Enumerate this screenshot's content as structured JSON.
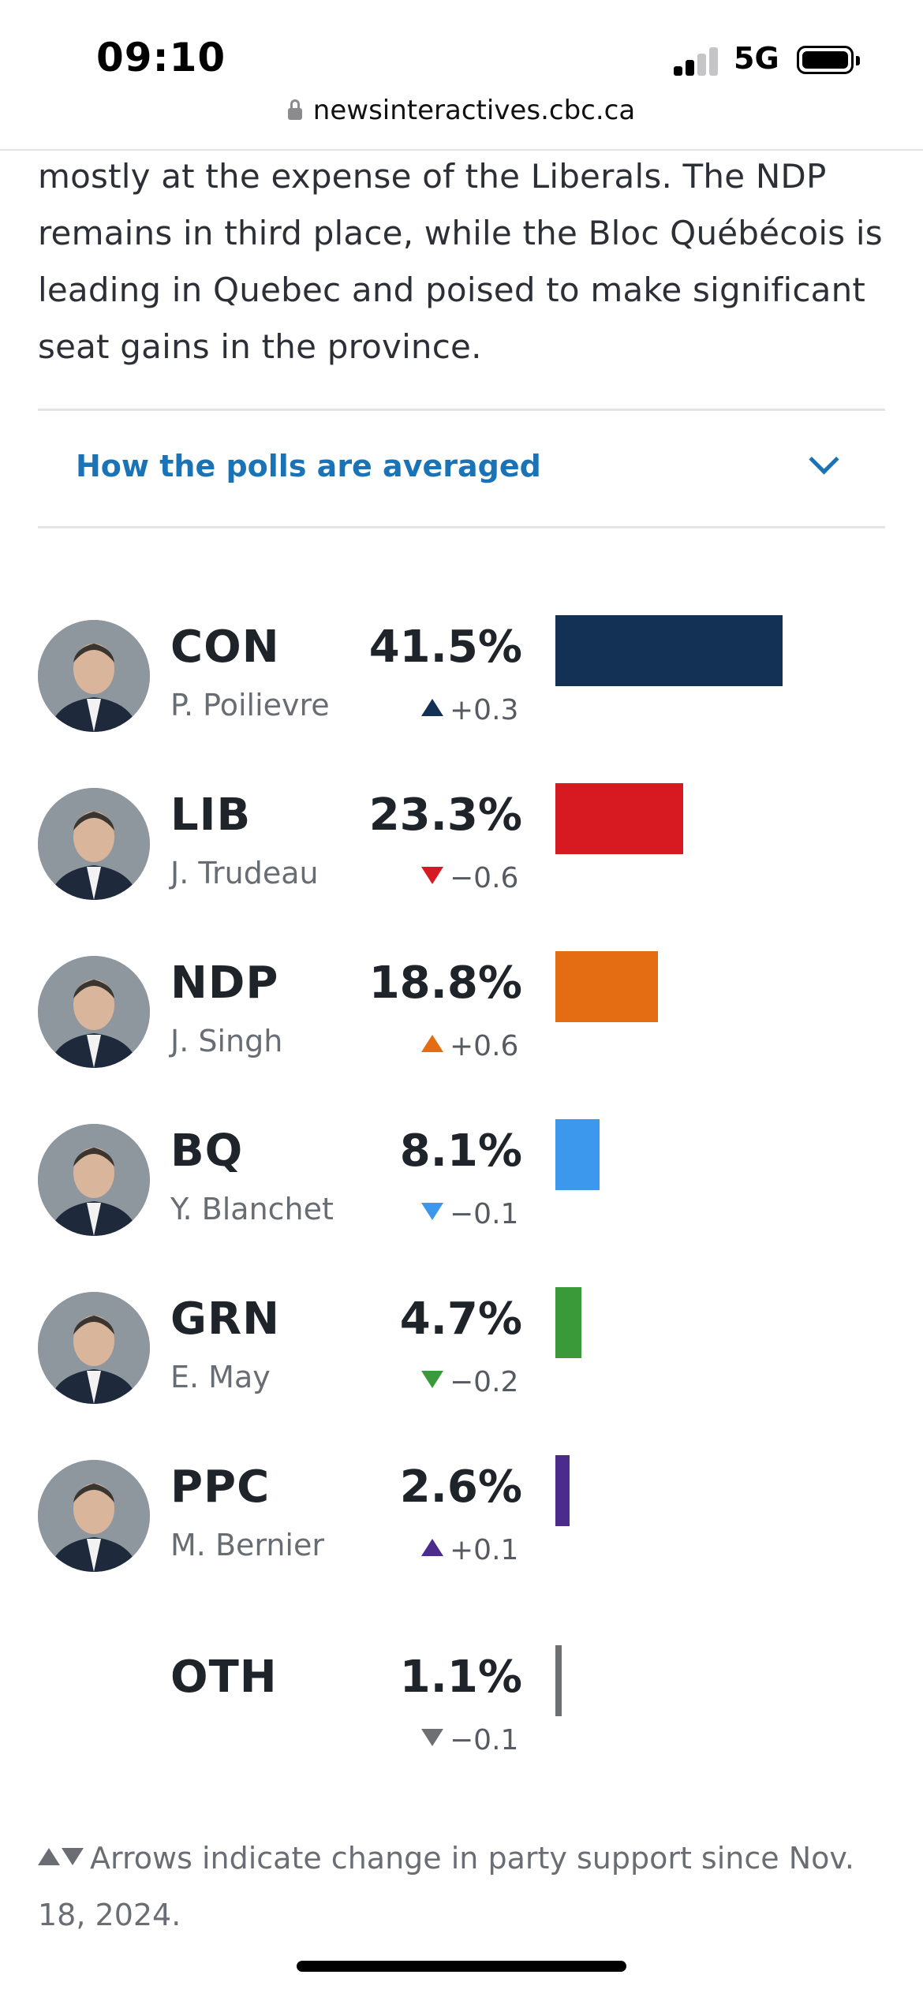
{
  "status": {
    "time": "09:10",
    "network": "5G",
    "url": "newsinteractives.cbc.ca"
  },
  "article": {
    "paragraph": "mostly at the expense of the Liberals. The NDP remains in third place, while the Bloc Québécois is leading in Quebec and poised to make significant seat gains in the province.",
    "accordion_label": "How the polls are averaged"
  },
  "parties": [
    {
      "abbr": "CON",
      "leader": "P. Poilievre",
      "pct": "41.5%",
      "value": 41.5,
      "change": "+0.3",
      "direction": "up",
      "color": "#133155",
      "photo": "portrait-photo"
    },
    {
      "abbr": "LIB",
      "leader": "J. Trudeau",
      "pct": "23.3%",
      "value": 23.3,
      "change": "−0.6",
      "direction": "down",
      "color": "#d71921",
      "photo": "portrait-photo"
    },
    {
      "abbr": "NDP",
      "leader": "J. Singh",
      "pct": "18.8%",
      "value": 18.8,
      "change": "+0.6",
      "direction": "up",
      "color": "#e46c12",
      "photo": "portrait-photo"
    },
    {
      "abbr": "BQ",
      "leader": "Y. Blanchet",
      "pct": "8.1%",
      "value": 8.1,
      "change": "−0.1",
      "direction": "down",
      "color": "#3b98ec",
      "photo": "portrait-photo"
    },
    {
      "abbr": "GRN",
      "leader": "E. May",
      "pct": "4.7%",
      "value": 4.7,
      "change": "−0.2",
      "direction": "down",
      "color": "#3a9a3a",
      "photo": "portrait-photo"
    },
    {
      "abbr": "PPC",
      "leader": "M. Bernier",
      "pct": "2.6%",
      "value": 2.6,
      "change": "+0.1",
      "direction": "up",
      "color": "#4b2c8c",
      "photo": "portrait-photo"
    },
    {
      "abbr": "OTH",
      "leader": "",
      "pct": "1.1%",
      "value": 1.1,
      "change": "−0.1",
      "direction": "down",
      "color": "#6d6f73",
      "photo": ""
    }
  ],
  "footnote": "Arrows indicate change in party support since Nov. 18, 2024."
}
